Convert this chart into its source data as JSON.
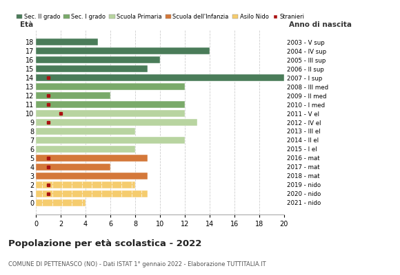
{
  "ages": [
    18,
    17,
    16,
    15,
    14,
    13,
    12,
    11,
    10,
    9,
    8,
    7,
    6,
    5,
    4,
    3,
    2,
    1,
    0
  ],
  "anno_nascita_labels": [
    "2003 - V sup",
    "2004 - IV sup",
    "2005 - III sup",
    "2006 - II sup",
    "2007 - I sup",
    "2008 - III med",
    "2009 - II med",
    "2010 - I med",
    "2011 - V el",
    "2012 - IV el",
    "2013 - III el",
    "2014 - II el",
    "2015 - I el",
    "2016 - mat",
    "2017 - mat",
    "2018 - mat",
    "2019 - nido",
    "2020 - nido",
    "2021 - nido"
  ],
  "bar_values": [
    5,
    14,
    10,
    9,
    20,
    12,
    6,
    12,
    12,
    13,
    8,
    12,
    8,
    9,
    6,
    9,
    8,
    9,
    4
  ],
  "bar_colors": [
    "#4a7c59",
    "#4a7c59",
    "#4a7c59",
    "#4a7c59",
    "#4a7c59",
    "#7aaa6a",
    "#7aaa6a",
    "#7aaa6a",
    "#b8d4a0",
    "#b8d4a0",
    "#b8d4a0",
    "#b8d4a0",
    "#b8d4a0",
    "#d4783a",
    "#d4783a",
    "#d4783a",
    "#f5cc6e",
    "#f5cc6e",
    "#f5cc6e"
  ],
  "stranieri_data": {
    "14": 1,
    "12": 1,
    "11": 1,
    "10": 2,
    "9": 1,
    "5": 1,
    "4": 1,
    "2": 1,
    "1": 1
  },
  "legend_labels": [
    "Sec. II grado",
    "Sec. I grado",
    "Scuola Primaria",
    "Scuola dell'Infanzia",
    "Asilo Nido",
    "Stranieri"
  ],
  "legend_colors": [
    "#4a7c59",
    "#7aaa6a",
    "#b8d4a0",
    "#d4783a",
    "#f5cc6e",
    "#aa1111"
  ],
  "title": "Popolazione per età scolastica - 2022",
  "subtitle": "COMUNE DI PETTENASCO (NO) - Dati ISTAT 1° gennaio 2022 - Elaborazione TUTTITALIA.IT",
  "xlabel_eta": "Età",
  "xlabel_anno": "Anno di nascita",
  "xlim": [
    0,
    20
  ],
  "xticks": [
    0,
    2,
    4,
    6,
    8,
    10,
    12,
    14,
    16,
    18,
    20
  ],
  "bg_color": "#ffffff",
  "grid_color": "#cccccc",
  "bar_height": 0.78,
  "dashed_ages": [
    2,
    1,
    0
  ],
  "nido_color": "#f5cc6e"
}
